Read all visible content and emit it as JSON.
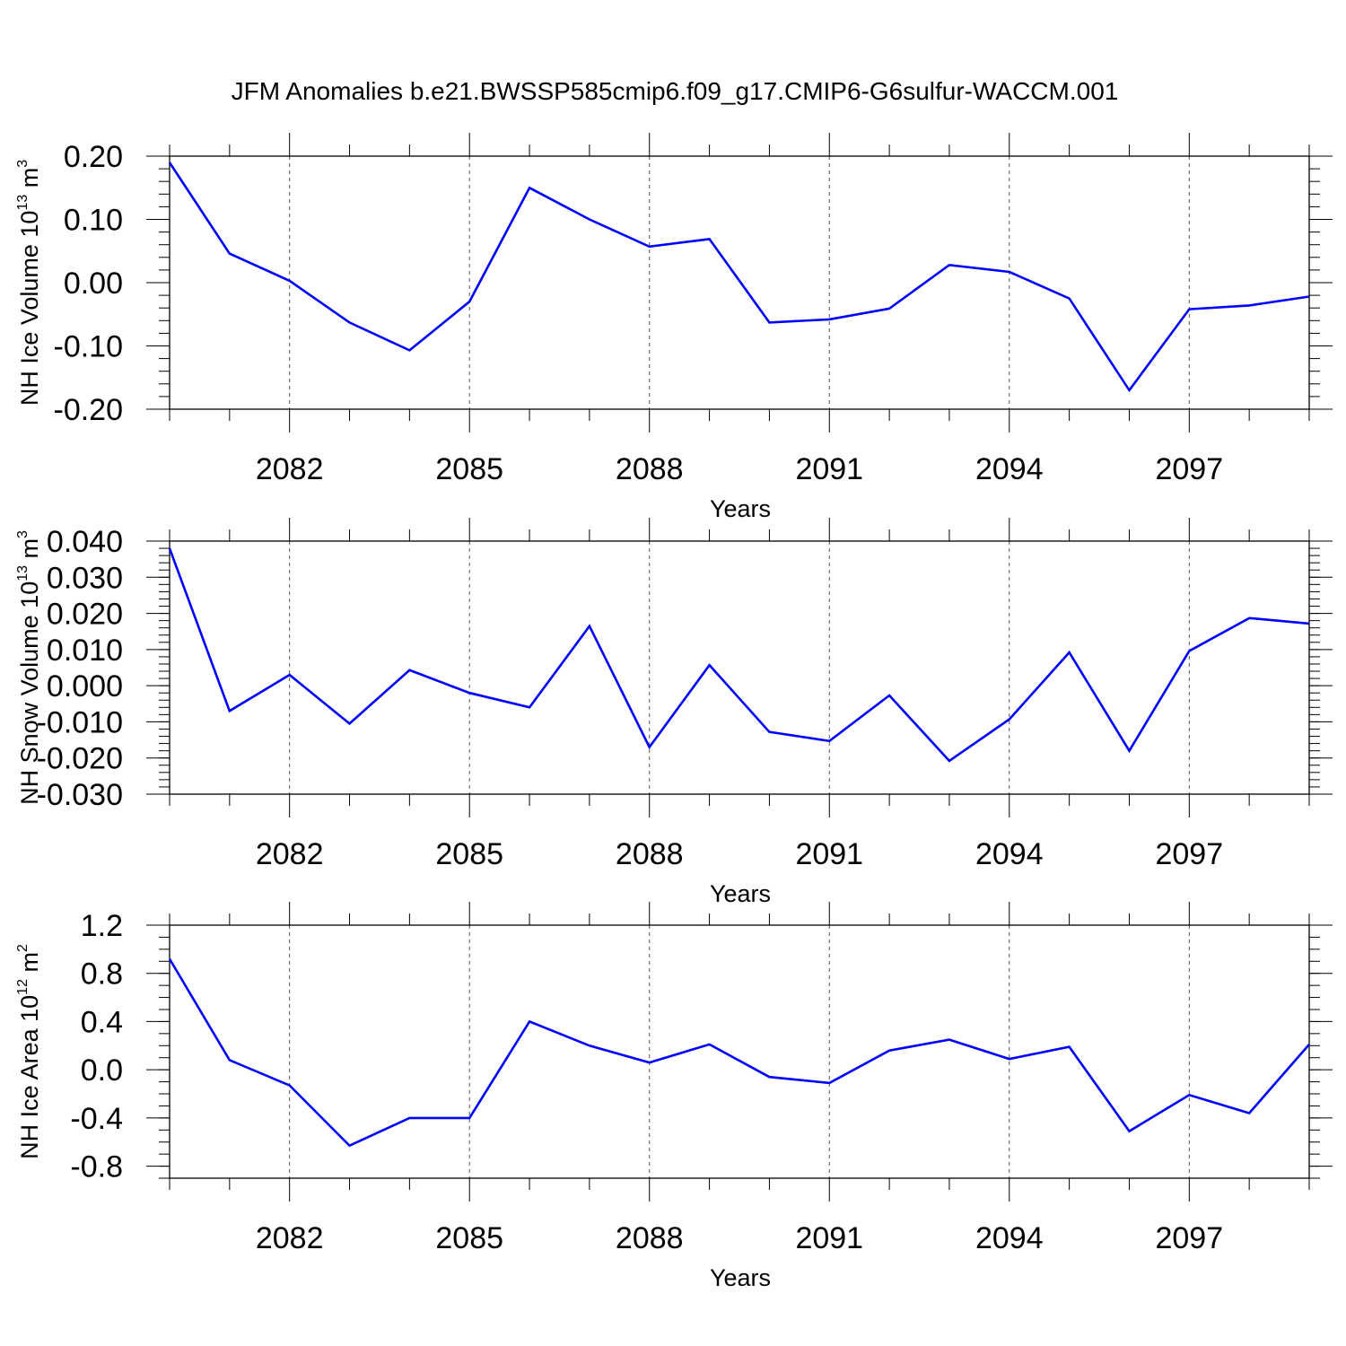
{
  "figure_title": "JFM Anomalies b.e21.BWSSP585cmip6.f09_g17.CMIP6-G6sulfur-WACCM.001",
  "line_color": "#0000ff",
  "chart_data": [
    {
      "type": "line",
      "ylabel": {
        "text": "NH Ice Volume 10",
        "sup": "13",
        "unit": " m",
        "unit_sup": "3"
      },
      "xlabel": "Years",
      "x": [
        2080,
        2081,
        2082,
        2083,
        2084,
        2085,
        2086,
        2087,
        2088,
        2089,
        2090,
        2091,
        2092,
        2093,
        2094,
        2095,
        2096,
        2097,
        2098,
        2099
      ],
      "values": [
        0.19,
        0.046,
        0.003,
        -0.063,
        -0.107,
        -0.03,
        0.15,
        0.1,
        0.057,
        0.069,
        -0.063,
        -0.058,
        -0.041,
        0.028,
        0.017,
        -0.025,
        -0.17,
        -0.042,
        -0.036,
        -0.022
      ],
      "xlim": [
        2080,
        2099
      ],
      "ylim": [
        -0.2,
        0.2
      ],
      "yticks": [
        -0.2,
        -0.1,
        0.0,
        0.1,
        0.2
      ],
      "ytick_labels": [
        "-0.20",
        "-0.10",
        "0.00",
        "0.10",
        "0.20"
      ],
      "xticks": [
        2082,
        2085,
        2088,
        2091,
        2094,
        2097
      ],
      "xtick_labels": [
        "2082",
        "2085",
        "2088",
        "2091",
        "2094",
        "2097"
      ],
      "y_minor_step": 0.02
    },
    {
      "type": "line",
      "ylabel": {
        "text": "NH Snow Volume 10",
        "sup": "13",
        "unit": " m",
        "unit_sup": "3"
      },
      "xlabel": "Years",
      "x": [
        2080,
        2081,
        2082,
        2083,
        2084,
        2085,
        2086,
        2087,
        2088,
        2089,
        2090,
        2091,
        2092,
        2093,
        2094,
        2095,
        2096,
        2097,
        2098,
        2099
      ],
      "values": [
        0.038,
        -0.007,
        0.003,
        -0.0105,
        0.0043,
        -0.002,
        -0.006,
        0.0165,
        -0.017,
        0.0057,
        -0.0128,
        -0.0153,
        -0.0027,
        -0.0208,
        -0.0093,
        0.0092,
        -0.018,
        0.0096,
        0.0187,
        0.0172
      ],
      "xlim": [
        2080,
        2099
      ],
      "ylim": [
        -0.03,
        0.04
      ],
      "yticks": [
        -0.03,
        -0.02,
        -0.01,
        0.0,
        0.01,
        0.02,
        0.03,
        0.04
      ],
      "ytick_labels": [
        "-0.030",
        "-0.020",
        "-0.010",
        "0.000",
        "0.010",
        "0.020",
        "0.030",
        "0.040"
      ],
      "xticks": [
        2082,
        2085,
        2088,
        2091,
        2094,
        2097
      ],
      "xtick_labels": [
        "2082",
        "2085",
        "2088",
        "2091",
        "2094",
        "2097"
      ],
      "y_minor_step": 0.002
    },
    {
      "type": "line",
      "ylabel": {
        "text": "NH Ice Area 10",
        "sup": "12",
        "unit": " m",
        "unit_sup": "2"
      },
      "xlabel": "Years",
      "x": [
        2080,
        2081,
        2082,
        2083,
        2084,
        2085,
        2086,
        2087,
        2088,
        2089,
        2090,
        2091,
        2092,
        2093,
        2094,
        2095,
        2096,
        2097,
        2098,
        2099
      ],
      "values": [
        0.92,
        0.08,
        -0.13,
        -0.63,
        -0.4,
        -0.4,
        0.4,
        0.2,
        0.06,
        0.21,
        -0.06,
        -0.11,
        0.16,
        0.25,
        0.09,
        0.19,
        -0.51,
        -0.21,
        -0.36,
        0.21
      ],
      "xlim": [
        2080,
        2099
      ],
      "ylim": [
        -0.9,
        1.2
      ],
      "yticks": [
        -0.8,
        -0.4,
        0.0,
        0.4,
        0.8,
        1.2
      ],
      "ytick_labels": [
        "-0.8",
        "-0.4",
        "0.0",
        "0.4",
        "0.8",
        "1.2"
      ],
      "xticks": [
        2082,
        2085,
        2088,
        2091,
        2094,
        2097
      ],
      "xtick_labels": [
        "2082",
        "2085",
        "2088",
        "2091",
        "2094",
        "2097"
      ],
      "y_minor_step": 0.1
    }
  ]
}
